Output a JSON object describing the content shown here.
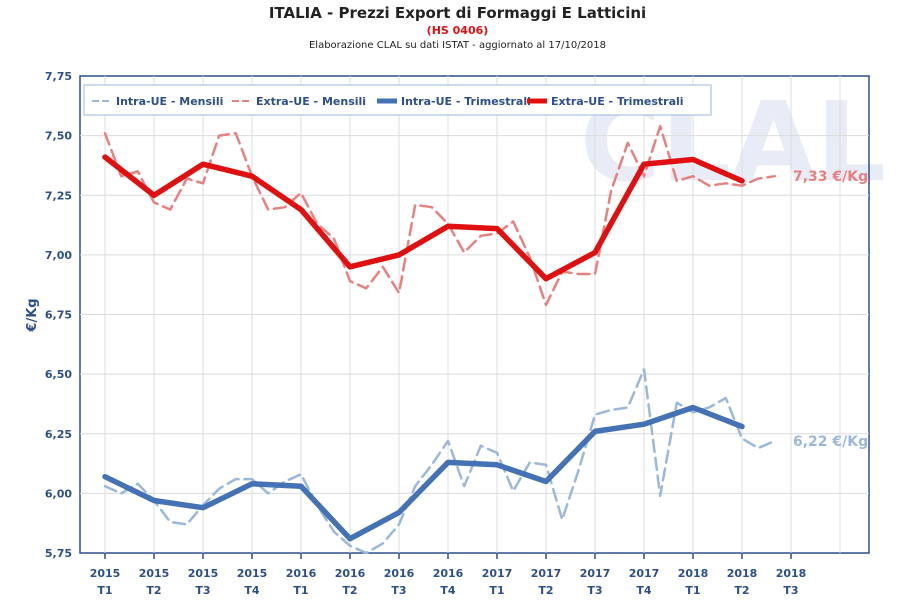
{
  "header": {
    "title": "ITALIA - Prezzi Export di Formaggi E Latticini",
    "code": "(HS 0406)",
    "source": "Elaborazione CLAL su dati ISTAT - aggiornato al 17/10/2018"
  },
  "watermark": "CLAL",
  "colors": {
    "intra_monthly": "#9ab7dc",
    "extra_monthly": "#e88080",
    "intra_quarterly": "#4472b4",
    "extra_quarterly": "#e01010",
    "axis": "#2d4f8c"
  },
  "chart_data": {
    "type": "line",
    "title": "ITALIA - Prezzi Export di Formaggi E Latticini",
    "ylabel": "€/Kg",
    "ylim": [
      5.75,
      7.75
    ],
    "yticks": [
      "7,75",
      "7,50",
      "7,25",
      "7,00",
      "6,75",
      "6,50",
      "6,25",
      "6,00",
      "5,75"
    ],
    "grid": true,
    "legend_position": "top-left",
    "categories": [
      [
        "2015",
        "T1"
      ],
      [
        "2015",
        "T2"
      ],
      [
        "2015",
        "T3"
      ],
      [
        "2015",
        "T4"
      ],
      [
        "2016",
        "T1"
      ],
      [
        "2016",
        "T2"
      ],
      [
        "2016",
        "T3"
      ],
      [
        "2016",
        "T4"
      ],
      [
        "2017",
        "T1"
      ],
      [
        "2017",
        "T2"
      ],
      [
        "2017",
        "T3"
      ],
      [
        "2017",
        "T4"
      ],
      [
        "2018",
        "T1"
      ],
      [
        "2018",
        "T2"
      ],
      [
        "2018",
        "T3"
      ]
    ],
    "series": [
      {
        "name": "Intra-UE - Mensili",
        "style": "dashed",
        "x": [
          0,
          0.33,
          0.67,
          1,
          1.33,
          1.67,
          2,
          2.33,
          2.67,
          3,
          3.33,
          3.67,
          4,
          4.33,
          4.67,
          5,
          5.33,
          5.67,
          6,
          6.33,
          6.67,
          7,
          7.33,
          7.67,
          8,
          8.33,
          8.67,
          9,
          9.33,
          9.67,
          10,
          10.33,
          10.67,
          11,
          11.33,
          11.67,
          12,
          12.33,
          12.67,
          13,
          13.33,
          13.67
        ],
        "values": [
          6.03,
          6.0,
          6.04,
          5.97,
          5.88,
          5.87,
          5.95,
          6.02,
          6.06,
          6.06,
          6.0,
          6.05,
          6.08,
          5.95,
          5.84,
          5.78,
          5.75,
          5.79,
          5.87,
          6.03,
          6.12,
          6.22,
          6.03,
          6.2,
          6.17,
          6.01,
          6.13,
          6.12,
          5.89,
          6.1,
          6.33,
          6.35,
          6.36,
          6.52,
          5.99,
          6.38,
          6.34,
          6.36,
          6.4,
          6.23,
          6.19,
          6.22
        ]
      },
      {
        "name": "Extra-UE - Mensili",
        "style": "dashed",
        "x": [
          0,
          0.33,
          0.67,
          1,
          1.33,
          1.67,
          2,
          2.33,
          2.67,
          3,
          3.33,
          3.67,
          4,
          4.33,
          4.67,
          5,
          5.33,
          5.67,
          6,
          6.33,
          6.67,
          7,
          7.33,
          7.67,
          8,
          8.33,
          8.67,
          9,
          9.33,
          9.67,
          10,
          10.33,
          10.67,
          11,
          11.33,
          11.67,
          12,
          12.33,
          12.67,
          13,
          13.33,
          13.67
        ],
        "values": [
          7.51,
          7.33,
          7.35,
          7.22,
          7.19,
          7.32,
          7.3,
          7.5,
          7.51,
          7.33,
          7.19,
          7.2,
          7.26,
          7.13,
          7.07,
          6.89,
          6.86,
          6.95,
          6.84,
          7.21,
          7.2,
          7.13,
          7.01,
          7.08,
          7.09,
          7.14,
          6.99,
          6.79,
          6.93,
          6.92,
          6.92,
          7.27,
          7.47,
          7.33,
          7.54,
          7.31,
          7.33,
          7.29,
          7.3,
          7.29,
          7.32,
          7.33
        ]
      },
      {
        "name": "Intra-UE - Trimestrali",
        "style": "solid",
        "x": [
          0,
          1,
          2,
          3,
          4,
          5,
          6,
          7,
          8,
          9,
          10,
          11,
          12,
          13
        ],
        "values": [
          6.07,
          5.97,
          5.94,
          6.04,
          6.03,
          5.81,
          5.92,
          6.13,
          6.12,
          6.05,
          6.26,
          6.29,
          6.36,
          6.28
        ]
      },
      {
        "name": "Extra-UE - Trimestrali",
        "style": "solid",
        "x": [
          0,
          1,
          2,
          3,
          4,
          5,
          6,
          7,
          8,
          9,
          10,
          11,
          12,
          13
        ],
        "values": [
          7.41,
          7.25,
          7.38,
          7.33,
          7.19,
          6.95,
          7.0,
          7.12,
          7.11,
          6.9,
          7.01,
          7.38,
          7.4,
          7.31
        ]
      }
    ],
    "annotations": [
      {
        "text": "7,33 €/Kg",
        "value": 7.33,
        "series": "Extra-UE - Mensili"
      },
      {
        "text": "6,22 €/Kg",
        "value": 6.22,
        "series": "Intra-UE - Mensili"
      }
    ]
  }
}
